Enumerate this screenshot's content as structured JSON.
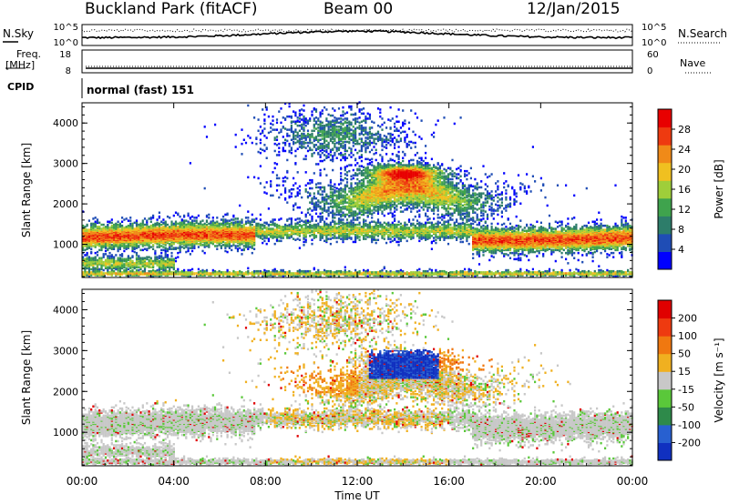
{
  "header": {
    "title": "Buckland Park (fitACF)",
    "beam": "Beam 00",
    "date": "12/Jan/2015"
  },
  "side_labels": {
    "nsky": "N.Sky",
    "nsearch": "N.Search",
    "freq": "Freq.",
    "freq_unit": "[MHz]",
    "nave": "Nave",
    "cpid": "CPID"
  },
  "mode_text": "normal (fast) 151",
  "chart_data": [
    {
      "type": "line",
      "panel": "noise",
      "left_ticks": [
        "10^5",
        "10^0"
      ],
      "right_ticks": [
        "10^5",
        "10^0"
      ],
      "series": [
        {
          "name": "N.Sky",
          "style": "solid"
        },
        {
          "name": "N.Search",
          "style": "dotted"
        }
      ]
    },
    {
      "type": "line",
      "panel": "frequency",
      "left_ticks": [
        "18",
        "8"
      ],
      "right_ticks": [
        "60",
        "0"
      ],
      "series": [
        {
          "name": "Freq.",
          "style": "solid"
        },
        {
          "name": "Nave",
          "style": "dotted"
        }
      ]
    },
    {
      "type": "heatmap",
      "panel": "power",
      "ylabel": "Slant Range [km]",
      "ylim": [
        180,
        4500
      ],
      "yticks": [
        1000,
        2000,
        3000,
        4000
      ],
      "x_range_hours": [
        0,
        24
      ],
      "colorbar": {
        "label": "Power [dB]",
        "ticks": [
          "28",
          "24",
          "20",
          "16",
          "12",
          "8",
          "4"
        ],
        "range": [
          0,
          30
        ],
        "colors": [
          "#0000ff",
          "#1f4db5",
          "#2d7d6a",
          "#3fa34d",
          "#9fce3a",
          "#f0c020",
          "#f08a18",
          "#ee3a10",
          "#e80000"
        ]
      }
    },
    {
      "type": "heatmap",
      "panel": "velocity",
      "ylabel": "Slant Range [km]",
      "xlabel": "Time UT",
      "ylim": [
        180,
        4500
      ],
      "yticks": [
        1000,
        2000,
        3000,
        4000
      ],
      "x_range_hours": [
        0,
        24
      ],
      "xticks": [
        "00:00",
        "04:00",
        "08:00",
        "12:00",
        "16:00",
        "20:00",
        "00:00"
      ],
      "colorbar": {
        "label": "Velocity [m s⁻¹]",
        "ticks": [
          "200",
          "100",
          "50",
          "15",
          "-15",
          "-50",
          "-100",
          "-200"
        ],
        "colors": [
          "#1030c0",
          "#2860d0",
          "#2e8a4a",
          "#5ac83a",
          "#c8c8c8",
          "#f0b020",
          "#f07810",
          "#ee3a10",
          "#e00000"
        ]
      }
    }
  ]
}
